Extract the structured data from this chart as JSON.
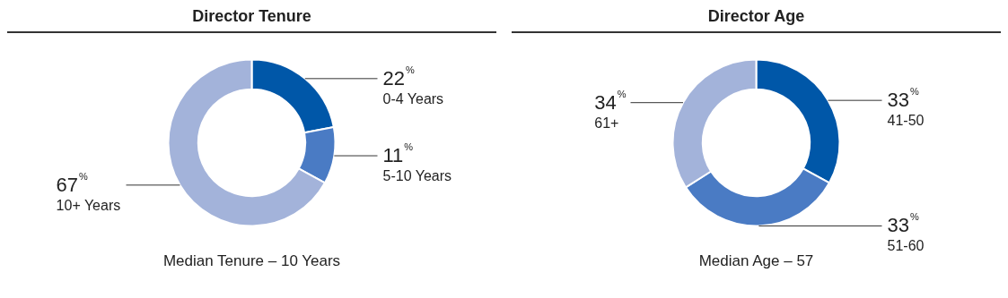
{
  "chart_data": [
    {
      "type": "donut",
      "title": "Director Tenure",
      "categories": [
        "0-4 Years",
        "5-10 Years",
        "10+ Years"
      ],
      "values": [
        22,
        11,
        67
      ],
      "colors": [
        "#0057a8",
        "#4a7bc4",
        "#a3b3da"
      ],
      "value_labels": [
        "22$^{%}$",
        "11$^{%}$",
        "67$^{%}$"
      ],
      "annotations": [
        "Median Tenure – 10 Years"
      ]
    },
    {
      "type": "donut",
      "title": "Director Age",
      "categories": [
        "41-50",
        "51-60",
        "61+"
      ],
      "values": [
        33,
        33,
        34
      ],
      "colors": [
        "#0057a8",
        "#4a7bc4",
        "#a3b3da"
      ],
      "value_labels": [
        "33$^{%}$",
        "33$^{%}$",
        "34$^{%}$"
      ],
      "annotations": [
        "Median Age – 57"
      ]
    }
  ]
}
